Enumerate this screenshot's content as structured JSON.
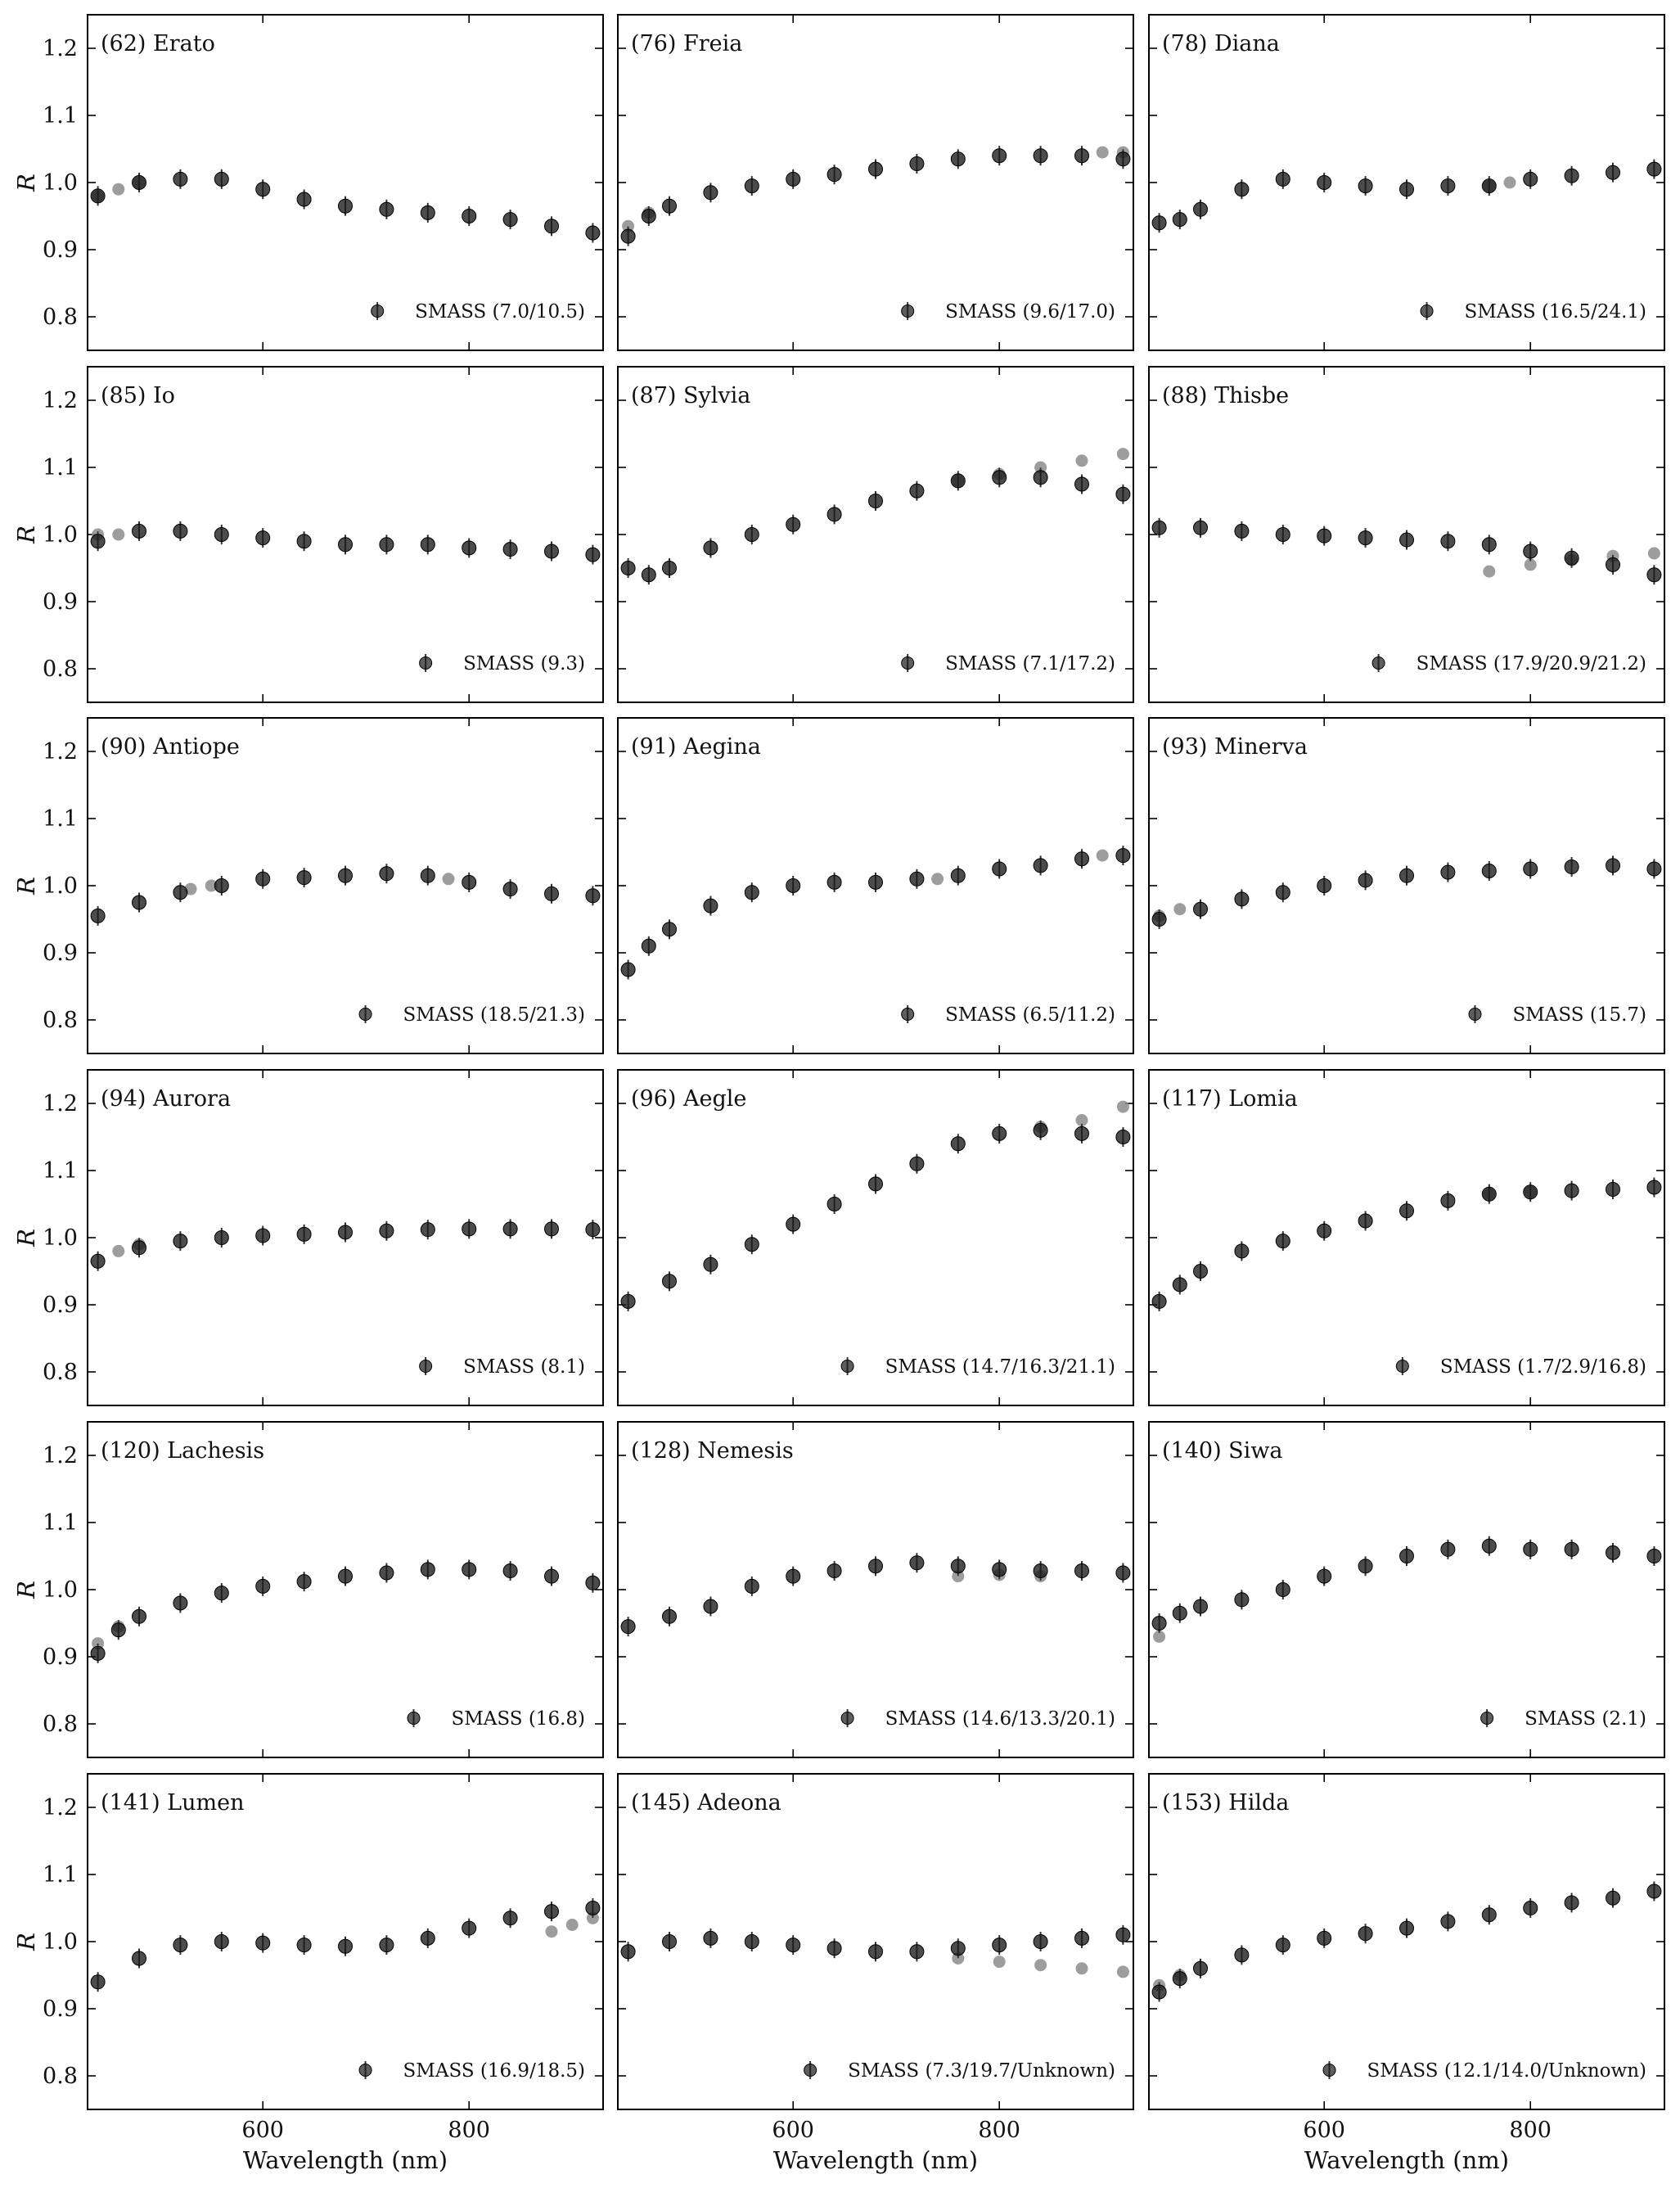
{
  "figure": {
    "ylabel": "R",
    "xlabel": "Wavelength (nm)",
    "xlim": [
      430,
      930
    ],
    "ylim": [
      0.75,
      1.25
    ],
    "yticks": [
      "0.8",
      "0.9",
      "1.0",
      "1.1",
      "1.2"
    ],
    "xticks": [
      "600",
      "800"
    ],
    "marker_color": "#1a1a1a",
    "secondary_color": "#8c8c8c"
  },
  "chart_data": [
    {
      "type": "scatter",
      "title": "(62) Erato",
      "legend": "SMASS (7.0/10.5)",
      "x": [
        440,
        480,
        520,
        560,
        600,
        640,
        680,
        720,
        760,
        800,
        840,
        880,
        920
      ],
      "y": [
        0.98,
        1.0,
        1.005,
        1.005,
        0.99,
        0.975,
        0.965,
        0.96,
        0.955,
        0.95,
        0.945,
        0.935,
        0.925
      ],
      "secondary": {
        "x": [
          440,
          460,
          480
        ],
        "y": [
          0.98,
          0.99,
          1.0
        ]
      }
    },
    {
      "type": "scatter",
      "title": "(76) Freia",
      "legend": "SMASS (9.6/17.0)",
      "x": [
        440,
        460,
        480,
        520,
        560,
        600,
        640,
        680,
        720,
        760,
        800,
        840,
        880,
        920
      ],
      "y": [
        0.92,
        0.95,
        0.965,
        0.985,
        0.995,
        1.005,
        1.012,
        1.02,
        1.028,
        1.035,
        1.04,
        1.04,
        1.04,
        1.035
      ],
      "secondary": {
        "x": [
          440,
          460,
          900,
          920
        ],
        "y": [
          0.935,
          0.955,
          1.045,
          1.045
        ]
      }
    },
    {
      "type": "scatter",
      "title": "(78) Diana",
      "legend": "SMASS (16.5/24.1)",
      "x": [
        440,
        460,
        480,
        520,
        560,
        600,
        640,
        680,
        720,
        760,
        800,
        840,
        880,
        920
      ],
      "y": [
        0.94,
        0.945,
        0.96,
        0.99,
        1.005,
        1.0,
        0.995,
        0.99,
        0.995,
        0.995,
        1.005,
        1.01,
        1.015,
        1.02
      ],
      "secondary": {
        "x": [
          760,
          780
        ],
        "y": [
          0.995,
          1.0
        ]
      }
    },
    {
      "type": "scatter",
      "title": "(85) Io",
      "legend": "SMASS (9.3)",
      "x": [
        440,
        480,
        520,
        560,
        600,
        640,
        680,
        720,
        760,
        800,
        840,
        880,
        920
      ],
      "y": [
        0.99,
        1.005,
        1.005,
        1.0,
        0.995,
        0.99,
        0.985,
        0.985,
        0.985,
        0.98,
        0.978,
        0.975,
        0.97
      ],
      "secondary": {
        "x": [
          440,
          460
        ],
        "y": [
          1.0,
          1.0
        ]
      }
    },
    {
      "type": "scatter",
      "title": "(87) Sylvia",
      "legend": "SMASS (7.1/17.2)",
      "x": [
        440,
        460,
        480,
        520,
        560,
        600,
        640,
        680,
        720,
        760,
        800,
        840,
        880,
        920
      ],
      "y": [
        0.95,
        0.94,
        0.95,
        0.98,
        1.0,
        1.015,
        1.03,
        1.05,
        1.065,
        1.08,
        1.085,
        1.085,
        1.075,
        1.06
      ],
      "secondary": {
        "x": [
          760,
          800,
          840,
          880,
          920
        ],
        "y": [
          1.08,
          1.09,
          1.1,
          1.11,
          1.12
        ]
      }
    },
    {
      "type": "scatter",
      "title": "(88) Thisbe",
      "legend": "SMASS (17.9/20.9/21.2)",
      "x": [
        440,
        480,
        520,
        560,
        600,
        640,
        680,
        720,
        760,
        800,
        840,
        880,
        920
      ],
      "y": [
        1.01,
        1.01,
        1.005,
        1.0,
        0.998,
        0.995,
        0.992,
        0.99,
        0.985,
        0.975,
        0.965,
        0.955,
        0.94
      ],
      "secondary": {
        "x": [
          760,
          800,
          840,
          880,
          920
        ],
        "y": [
          0.945,
          0.955,
          0.962,
          0.968,
          0.972
        ]
      }
    },
    {
      "type": "scatter",
      "title": "(90) Antiope",
      "legend": "SMASS (18.5/21.3)",
      "x": [
        440,
        480,
        520,
        560,
        600,
        640,
        680,
        720,
        760,
        800,
        840,
        880,
        920
      ],
      "y": [
        0.955,
        0.975,
        0.99,
        1.0,
        1.01,
        1.012,
        1.015,
        1.018,
        1.015,
        1.005,
        0.995,
        0.988,
        0.985
      ],
      "secondary": {
        "x": [
          530,
          550,
          780
        ],
        "y": [
          0.995,
          1.0,
          1.01
        ]
      }
    },
    {
      "type": "scatter",
      "title": "(91) Aegina",
      "legend": "SMASS (6.5/11.2)",
      "x": [
        440,
        460,
        480,
        520,
        560,
        600,
        640,
        680,
        720,
        760,
        800,
        840,
        880,
        920
      ],
      "y": [
        0.875,
        0.91,
        0.935,
        0.97,
        0.99,
        1.0,
        1.005,
        1.005,
        1.01,
        1.015,
        1.025,
        1.03,
        1.04,
        1.045
      ],
      "secondary": {
        "x": [
          740,
          900
        ],
        "y": [
          1.01,
          1.045
        ]
      }
    },
    {
      "type": "scatter",
      "title": "(93) Minerva",
      "legend": "SMASS (15.7)",
      "x": [
        440,
        480,
        520,
        560,
        600,
        640,
        680,
        720,
        760,
        800,
        840,
        880,
        920
      ],
      "y": [
        0.95,
        0.965,
        0.98,
        0.99,
        1.0,
        1.008,
        1.015,
        1.02,
        1.022,
        1.025,
        1.028,
        1.03,
        1.025
      ],
      "secondary": {
        "x": [
          440,
          460
        ],
        "y": [
          0.955,
          0.965
        ]
      }
    },
    {
      "type": "scatter",
      "title": "(94) Aurora",
      "legend": "SMASS (8.1)",
      "x": [
        440,
        480,
        520,
        560,
        600,
        640,
        680,
        720,
        760,
        800,
        840,
        880,
        920
      ],
      "y": [
        0.965,
        0.985,
        0.995,
        1.0,
        1.003,
        1.005,
        1.008,
        1.01,
        1.012,
        1.013,
        1.013,
        1.013,
        1.012
      ],
      "secondary": {
        "x": [
          460,
          480
        ],
        "y": [
          0.98,
          0.99
        ]
      }
    },
    {
      "type": "scatter",
      "title": "(96) Aegle",
      "legend": "SMASS (14.7/16.3/21.1)",
      "x": [
        440,
        480,
        520,
        560,
        600,
        640,
        680,
        720,
        760,
        800,
        840,
        880,
        920
      ],
      "y": [
        0.905,
        0.935,
        0.96,
        0.99,
        1.02,
        1.05,
        1.08,
        1.11,
        1.14,
        1.155,
        1.16,
        1.155,
        1.15
      ],
      "secondary": {
        "x": [
          840,
          880,
          920
        ],
        "y": [
          1.165,
          1.175,
          1.195
        ]
      }
    },
    {
      "type": "scatter",
      "title": "(117) Lomia",
      "legend": "SMASS (1.7/2.9/16.8)",
      "x": [
        440,
        460,
        480,
        520,
        560,
        600,
        640,
        680,
        720,
        760,
        800,
        840,
        880,
        920
      ],
      "y": [
        0.905,
        0.93,
        0.95,
        0.98,
        0.995,
        1.01,
        1.025,
        1.04,
        1.055,
        1.065,
        1.068,
        1.07,
        1.072,
        1.075
      ],
      "secondary": {
        "x": [
          760,
          800
        ],
        "y": [
          1.065,
          1.068
        ]
      }
    },
    {
      "type": "scatter",
      "title": "(120) Lachesis",
      "legend": "SMASS (16.8)",
      "x": [
        440,
        460,
        480,
        520,
        560,
        600,
        640,
        680,
        720,
        760,
        800,
        840,
        880,
        920
      ],
      "y": [
        0.905,
        0.94,
        0.96,
        0.98,
        0.995,
        1.005,
        1.012,
        1.02,
        1.025,
        1.03,
        1.03,
        1.028,
        1.02,
        1.01
      ],
      "secondary": {
        "x": [
          440,
          460
        ],
        "y": [
          0.92,
          0.945
        ]
      }
    },
    {
      "type": "scatter",
      "title": "(128) Nemesis",
      "legend": "SMASS (14.6/13.3/20.1)",
      "x": [
        440,
        480,
        520,
        560,
        600,
        640,
        680,
        720,
        760,
        800,
        840,
        880,
        920
      ],
      "y": [
        0.945,
        0.96,
        0.975,
        1.005,
        1.02,
        1.028,
        1.035,
        1.04,
        1.035,
        1.03,
        1.028,
        1.028,
        1.025
      ],
      "secondary": {
        "x": [
          760,
          800,
          840
        ],
        "y": [
          1.02,
          1.022,
          1.02
        ]
      }
    },
    {
      "type": "scatter",
      "title": "(140) Siwa",
      "legend": "SMASS (2.1)",
      "x": [
        440,
        460,
        480,
        520,
        560,
        600,
        640,
        680,
        720,
        760,
        800,
        840,
        880,
        920
      ],
      "y": [
        0.95,
        0.965,
        0.975,
        0.985,
        1.0,
        1.02,
        1.035,
        1.05,
        1.06,
        1.065,
        1.06,
        1.06,
        1.055,
        1.05
      ],
      "secondary": {
        "x": [
          440
        ],
        "y": [
          0.93
        ]
      }
    },
    {
      "type": "scatter",
      "title": "(141) Lumen",
      "legend": "SMASS (16.9/18.5)",
      "x": [
        440,
        480,
        520,
        560,
        600,
        640,
        680,
        720,
        760,
        800,
        840,
        880,
        920
      ],
      "y": [
        0.94,
        0.975,
        0.995,
        1.0,
        0.998,
        0.995,
        0.993,
        0.995,
        1.005,
        1.02,
        1.035,
        1.045,
        1.05
      ],
      "secondary": {
        "x": [
          880,
          900,
          920
        ],
        "y": [
          1.015,
          1.025,
          1.035
        ]
      }
    },
    {
      "type": "scatter",
      "title": "(145) Adeona",
      "legend": "SMASS (7.3/19.7/Unknown)",
      "x": [
        440,
        480,
        520,
        560,
        600,
        640,
        680,
        720,
        760,
        800,
        840,
        880,
        920
      ],
      "y": [
        0.985,
        1.0,
        1.005,
        1.0,
        0.995,
        0.99,
        0.985,
        0.985,
        0.99,
        0.995,
        1.0,
        1.005,
        1.01
      ],
      "secondary": {
        "x": [
          760,
          800,
          840,
          880,
          920
        ],
        "y": [
          0.975,
          0.97,
          0.965,
          0.96,
          0.955
        ]
      }
    },
    {
      "type": "scatter",
      "title": "(153) Hilda",
      "legend": "SMASS (12.1/14.0/Unknown)",
      "x": [
        440,
        460,
        480,
        520,
        560,
        600,
        640,
        680,
        720,
        760,
        800,
        840,
        880,
        920
      ],
      "y": [
        0.925,
        0.945,
        0.96,
        0.98,
        0.995,
        1.005,
        1.012,
        1.02,
        1.03,
        1.04,
        1.05,
        1.058,
        1.065,
        1.075
      ],
      "secondary": {
        "x": [
          440,
          460
        ],
        "y": [
          0.935,
          0.95
        ]
      }
    }
  ]
}
